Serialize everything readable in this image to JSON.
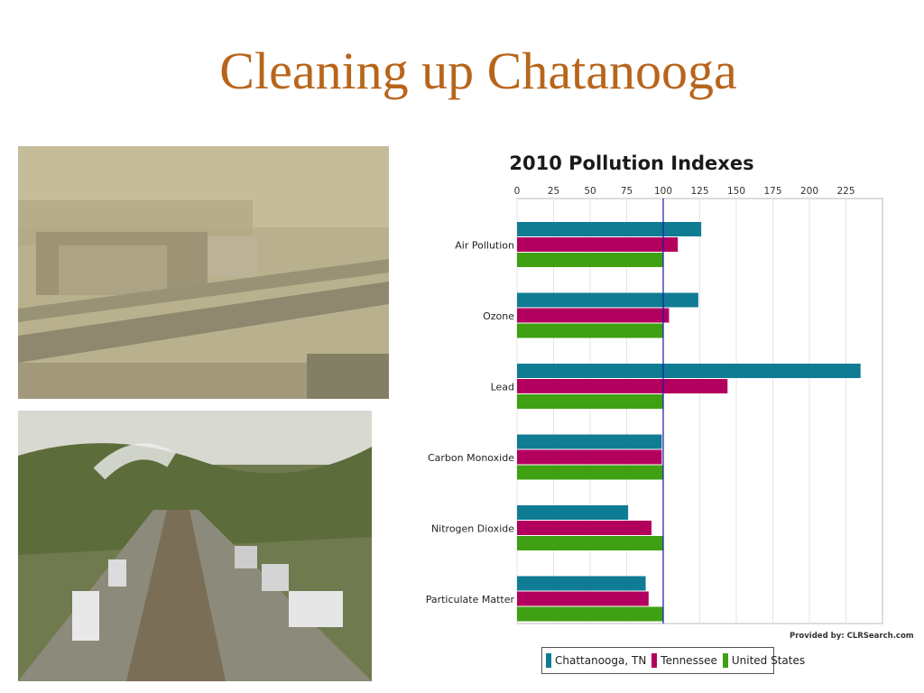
{
  "slide": {
    "title": "Cleaning up Chatanooga",
    "credit": "Provided by: CLRSearch.com"
  },
  "images": {
    "smog_photo": "smoggy-city-highway-photo",
    "traffic_photo": "highway-traffic-photo"
  },
  "colors": {
    "title": "#b8651b",
    "chattanooga": "#0f7c94",
    "tennessee": "#b3005e",
    "united_states": "#3ea012",
    "reference_line": "#1a1aaa"
  },
  "chart_data": {
    "type": "bar",
    "orientation": "horizontal",
    "title": "2010 Pollution Indexes",
    "categories": [
      "Air Pollution",
      "Ozone",
      "Lead",
      "Carbon Monoxide",
      "Nitrogen Dioxide",
      "Particulate Matter"
    ],
    "series": [
      {
        "name": "Chattanooga, TN",
        "values": [
          126,
          124,
          235,
          99,
          76,
          88
        ]
      },
      {
        "name": "Tennessee",
        "values": [
          110,
          104,
          144,
          99,
          92,
          90
        ]
      },
      {
        "name": "United States",
        "values": [
          100,
          100,
          100,
          100,
          100,
          100
        ]
      }
    ],
    "xlim": [
      0,
      250
    ],
    "xticks": [
      0,
      25,
      50,
      75,
      100,
      125,
      150,
      175,
      200,
      225
    ],
    "reference_line": 100,
    "axis_position": "top",
    "legend_position": "bottom",
    "grid": true
  }
}
